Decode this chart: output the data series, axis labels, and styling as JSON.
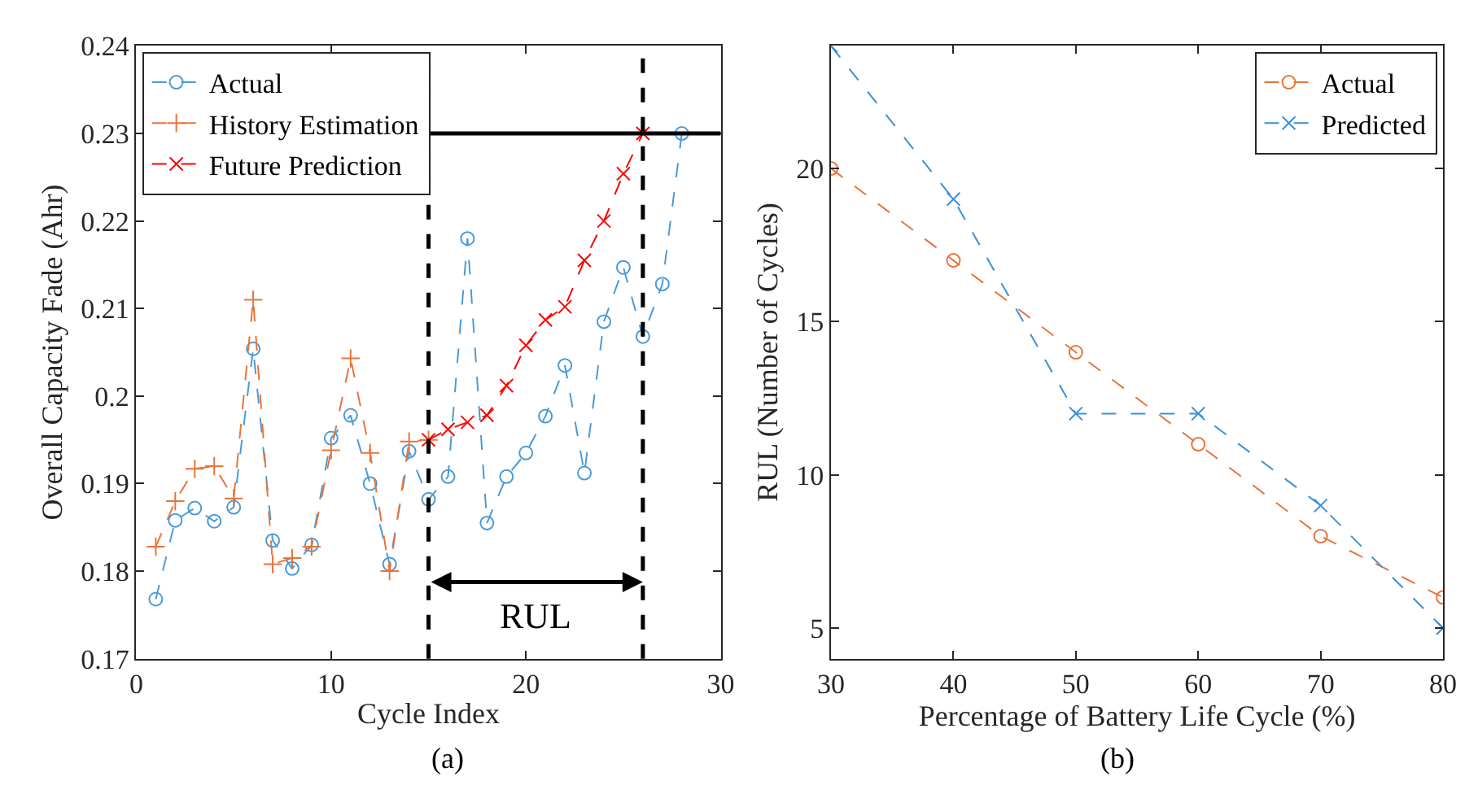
{
  "chart_data": [
    {
      "type": "line",
      "xlabel": "Cycle Index",
      "ylabel": "Overall Capacity Fade (Ahr)",
      "xlim": [
        0,
        30
      ],
      "xticks": [
        0,
        10,
        20,
        30
      ],
      "ylim": [
        0.17,
        0.24
      ],
      "yticks": [
        0.17,
        0.18,
        0.19,
        0.2,
        0.21,
        0.22,
        0.23,
        0.24
      ],
      "legend": "top left",
      "line_style": "dashed",
      "series": [
        {
          "name": "Actual",
          "color": "#4a9ad8",
          "marker": "circle",
          "x": [
            1,
            2,
            3,
            4,
            5,
            6,
            7,
            8,
            9,
            10,
            11,
            12,
            13,
            14,
            15,
            16,
            17,
            18,
            19,
            20,
            21,
            22,
            23,
            24,
            25,
            26,
            27,
            28
          ],
          "values": [
            0.1768,
            0.1858,
            0.1872,
            0.1857,
            0.1873,
            0.2054,
            0.1835,
            0.1803,
            0.183,
            0.1952,
            0.1978,
            0.19,
            0.1808,
            0.1937,
            0.1882,
            0.1908,
            0.218,
            0.1855,
            0.1908,
            0.1935,
            0.1977,
            0.2035,
            0.1912,
            0.2085,
            0.2147,
            0.2068,
            0.2128,
            0.23
          ]
        },
        {
          "name": "History Estimation",
          "color": "#e8743b",
          "marker": "cross",
          "x": [
            1,
            2,
            3,
            4,
            5,
            6,
            7,
            8,
            9,
            10,
            11,
            12,
            13,
            14,
            15
          ],
          "values": [
            0.1828,
            0.188,
            0.1917,
            0.192,
            0.1883,
            0.211,
            0.1808,
            0.1815,
            0.1828,
            0.1938,
            0.2043,
            0.1935,
            0.18,
            0.1948,
            0.195
          ]
        },
        {
          "name": "Future Prediction",
          "color": "#ff0000",
          "marker": "x",
          "x": [
            15,
            16,
            17,
            18,
            19,
            20,
            21,
            22,
            23,
            24,
            25,
            26
          ],
          "values": [
            0.195,
            0.1962,
            0.197,
            0.1978,
            0.2012,
            0.2058,
            0.2087,
            0.2102,
            0.2155,
            0.22,
            0.2254,
            0.23
          ]
        }
      ],
      "ref_lines": [
        {
          "axis": "x",
          "value": 15,
          "color": "#000000",
          "line_style": "dashed"
        },
        {
          "axis": "x",
          "value": 26,
          "color": "#000000",
          "line_style": "dashed"
        },
        {
          "axis": "y",
          "value": 0.23,
          "color": "#000000",
          "line_style": "solid"
        }
      ],
      "annotations": [
        "RUL",
        "(a)"
      ]
    },
    {
      "type": "line",
      "xlabel": "Percentage of Battery Life Cycle (%)",
      "ylabel": "RUL (Number of Cycles)",
      "xlim": [
        30,
        80
      ],
      "xticks": [
        30,
        40,
        50,
        60,
        70,
        80
      ],
      "ylim": [
        4,
        24
      ],
      "yticks": [
        5,
        10,
        15,
        20
      ],
      "legend": "top right",
      "line_style": "dashed",
      "series": [
        {
          "name": "Actual",
          "color": "#e8743b",
          "marker": "circle",
          "x": [
            30,
            40,
            50,
            60,
            70,
            80
          ],
          "values": [
            20,
            17,
            14,
            11,
            8,
            6
          ]
        },
        {
          "name": "Predicted",
          "color": "#3a8fd6",
          "marker": "x",
          "x": [
            30,
            40,
            50,
            60,
            70,
            80
          ],
          "values": [
            24,
            19,
            12,
            12,
            9,
            5
          ]
        }
      ],
      "annotations": [
        "(b)"
      ]
    }
  ]
}
